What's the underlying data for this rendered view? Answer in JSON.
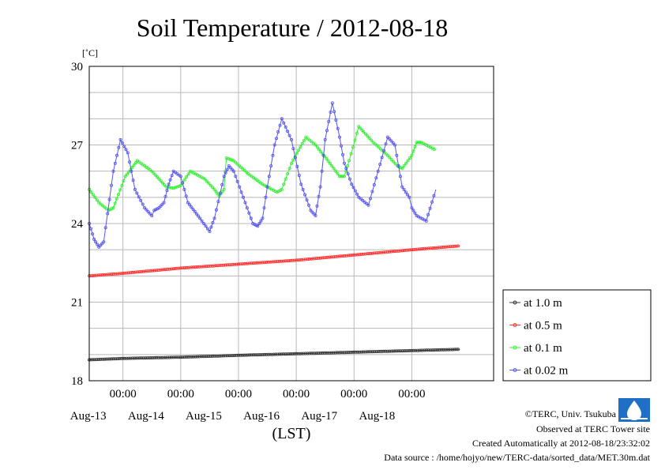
{
  "chart_data": {
    "type": "line",
    "title": "Soil Temperature / 2012-08-18",
    "ylabel": "[˚C]",
    "xlabel": "(LST)",
    "ylim": [
      18,
      30
    ],
    "yticks": [
      18,
      21,
      24,
      27,
      30
    ],
    "grid": true,
    "legend_position": "bottom-right",
    "x_range_hours": [
      -14,
      154
    ],
    "x_ticks": [
      {
        "hour": 0,
        "time": "00:00",
        "date": "Aug-13"
      },
      {
        "hour": 24,
        "time": "00:00",
        "date": "Aug-14"
      },
      {
        "hour": 48,
        "time": "00:00",
        "date": "Aug-15"
      },
      {
        "hour": 72,
        "time": "00:00",
        "date": "Aug-16"
      },
      {
        "hour": 96,
        "time": "00:00",
        "date": "Aug-17"
      },
      {
        "hour": 120,
        "time": "00:00",
        "date": "Aug-18"
      }
    ],
    "series": [
      {
        "name": "at 1.0 m",
        "color": "#333333",
        "x": [
          -14,
          0,
          24,
          48,
          72,
          96,
          120,
          140
        ],
        "y": [
          18.8,
          18.85,
          18.9,
          18.97,
          19.03,
          19.09,
          19.15,
          19.2
        ]
      },
      {
        "name": "at 0.5 m",
        "color": "#ff3333",
        "x": [
          -14,
          0,
          24,
          48,
          72,
          96,
          120,
          140
        ],
        "y": [
          22.0,
          22.1,
          22.3,
          22.45,
          22.6,
          22.8,
          23.0,
          23.15
        ]
      },
      {
        "name": "at 0.1 m",
        "color": "#33ee33",
        "x": [
          -14,
          -10,
          -6,
          -4,
          1,
          6,
          12,
          15,
          18,
          21,
          24,
          28,
          34,
          38,
          40,
          42,
          42.5,
          43,
          46,
          52,
          58,
          64,
          66,
          70,
          76,
          80,
          86,
          90,
          92,
          94,
          98,
          100,
          104,
          110,
          114,
          116,
          120,
          122,
          124,
          130
        ],
        "y": [
          25.3,
          24.8,
          24.5,
          24.6,
          25.8,
          26.4,
          26.0,
          25.7,
          25.4,
          25.35,
          25.45,
          26.0,
          25.7,
          25.3,
          25.05,
          25.3,
          26.0,
          26.5,
          26.4,
          25.9,
          25.5,
          25.2,
          25.3,
          26.3,
          27.3,
          27.0,
          26.3,
          25.8,
          25.8,
          26.4,
          27.7,
          27.5,
          27.1,
          26.6,
          26.2,
          26.1,
          26.6,
          27.1,
          27.1,
          26.8
        ]
      },
      {
        "name": "at 0.02 m",
        "color": "#5555ee",
        "x": [
          -14,
          -12,
          -10,
          -8,
          -4,
          -1,
          2,
          5,
          9,
          12,
          13,
          15,
          17,
          19,
          21,
          24,
          27,
          32,
          36,
          38,
          42,
          44,
          46,
          50,
          54,
          56,
          58,
          60,
          63,
          66,
          70,
          74,
          78,
          80,
          82,
          84,
          87,
          90,
          92,
          95,
          98,
          102,
          106,
          110,
          113,
          116,
          119,
          120,
          122,
          126,
          130
        ],
        "y": [
          24.0,
          23.4,
          23.1,
          23.3,
          26.0,
          27.2,
          26.7,
          25.3,
          24.6,
          24.3,
          24.5,
          24.6,
          24.8,
          25.5,
          26.0,
          25.8,
          24.8,
          24.2,
          23.7,
          24.2,
          25.8,
          26.2,
          26.0,
          25.0,
          24.0,
          23.9,
          24.2,
          25.4,
          27.0,
          28.0,
          27.2,
          25.5,
          24.5,
          24.3,
          25.4,
          27.2,
          28.6,
          27.3,
          26.3,
          25.5,
          25.0,
          24.7,
          26.0,
          27.3,
          27.0,
          25.4,
          25.0,
          24.6,
          24.3,
          24.1,
          25.3
        ]
      }
    ]
  },
  "footer": {
    "copyright": "©TERC, Univ. Tsukuba",
    "site": "Observed at TERC Tower site",
    "created": "Created Automatically at 2012-08-18/23:32:02",
    "source": "Data source : /home/hojyo/new/TERC-data/sorted_data/MET.30m.dat"
  }
}
